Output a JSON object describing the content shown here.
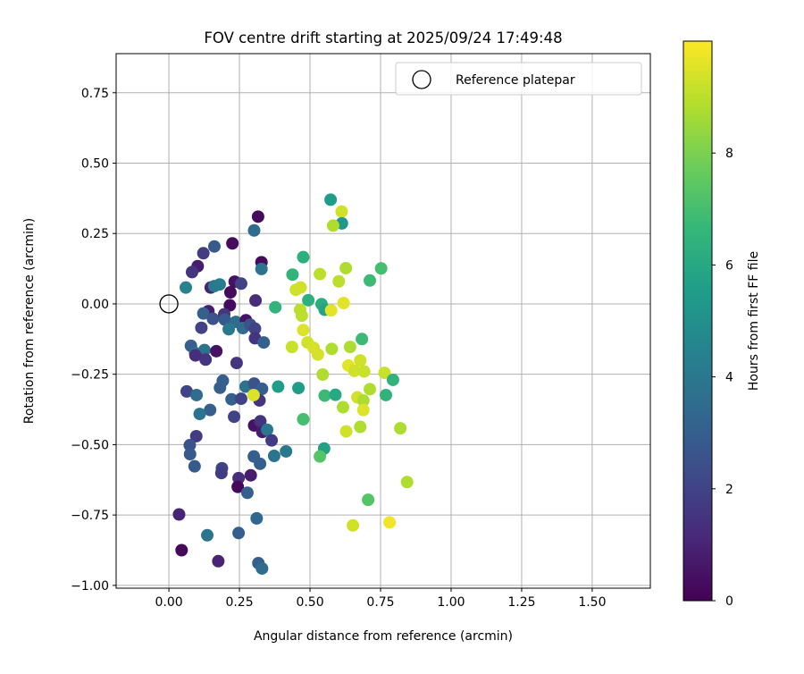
{
  "chart_data": {
    "type": "scatter",
    "title": "FOV centre drift starting at 2025/09/24 17:49:48",
    "xlabel": "Angular distance from reference (arcmin)",
    "ylabel": "Rotation from reference (arcmin)",
    "xlim": [
      -0.187,
      1.706
    ],
    "ylim": [
      -1.01,
      0.889
    ],
    "grid": true,
    "x_ticks": [
      0,
      0.25,
      0.5,
      0.75,
      1.0,
      1.25,
      1.5
    ],
    "x_tick_labels": [
      "0.00",
      "0.25",
      "0.50",
      "0.75",
      "1.00",
      "1.25",
      "1.50"
    ],
    "y_ticks": [
      -1.0,
      -0.75,
      -0.5,
      -0.25,
      0,
      0.25,
      0.5,
      0.75
    ],
    "y_tick_labels": [
      "−1.00",
      "−0.75",
      "−0.50",
      "−0.25",
      "0.00",
      "0.25",
      "0.50",
      "0.75"
    ],
    "legend": {
      "placement": "top-right",
      "entries": [
        "Reference platepar"
      ]
    },
    "reference_point": [
      0,
      0
    ],
    "colorbar": {
      "label": "Hours from first FF file",
      "colormap": "viridis",
      "range": [
        0,
        10
      ],
      "ticks": [
        0,
        2,
        4,
        6,
        8
      ],
      "tick_labels": [
        "0",
        "2",
        "4",
        "6",
        "8"
      ]
    },
    "points": [
      [
        0.316,
        0.31,
        0.3
      ],
      [
        0.302,
        0.261,
        3.5
      ],
      [
        0.225,
        0.215,
        0.3
      ],
      [
        0.161,
        0.204,
        2.8
      ],
      [
        0.122,
        0.18,
        1.8
      ],
      [
        0.102,
        0.134,
        0.8
      ],
      [
        0.082,
        0.113,
        1.5
      ],
      [
        0.328,
        0.148,
        0.3
      ],
      [
        0.328,
        0.124,
        3.8
      ],
      [
        0.06,
        0.058,
        4.5
      ],
      [
        0.148,
        0.058,
        1.0
      ],
      [
        0.161,
        0.063,
        4.0
      ],
      [
        0.18,
        0.069,
        4.2
      ],
      [
        0.233,
        0.079,
        0.5
      ],
      [
        0.218,
        0.041,
        0.3
      ],
      [
        0.256,
        0.072,
        2.0
      ],
      [
        0.216,
        -0.005,
        0.3
      ],
      [
        0.307,
        0.012,
        1.3
      ],
      [
        0.14,
        -0.026,
        0.8
      ],
      [
        0.122,
        -0.034,
        3.0
      ],
      [
        0.156,
        -0.053,
        2.5
      ],
      [
        0.196,
        -0.037,
        1.5
      ],
      [
        0.198,
        -0.056,
        2.8
      ],
      [
        0.237,
        -0.064,
        3.5
      ],
      [
        0.212,
        -0.09,
        4.0
      ],
      [
        0.115,
        -0.085,
        2.0
      ],
      [
        0.273,
        -0.058,
        0.5
      ],
      [
        0.262,
        -0.086,
        3.5
      ],
      [
        0.288,
        -0.074,
        2.5
      ],
      [
        0.305,
        -0.088,
        2.0
      ],
      [
        0.305,
        -0.122,
        1.5
      ],
      [
        0.336,
        -0.137,
        3.0
      ],
      [
        0.078,
        -0.149,
        3.0
      ],
      [
        0.093,
        -0.175,
        3.5
      ],
      [
        0.126,
        -0.164,
        3.8
      ],
      [
        0.168,
        -0.168,
        0.5
      ],
      [
        0.094,
        -0.183,
        1.3
      ],
      [
        0.13,
        -0.198,
        1.5
      ],
      [
        0.24,
        -0.21,
        1.5
      ],
      [
        0.191,
        -0.273,
        3.0
      ],
      [
        0.063,
        -0.311,
        2.0
      ],
      [
        0.098,
        -0.324,
        3.5
      ],
      [
        0.181,
        -0.298,
        3.0
      ],
      [
        0.272,
        -0.294,
        3.8
      ],
      [
        0.302,
        -0.283,
        2.5
      ],
      [
        0.33,
        -0.302,
        3.0
      ],
      [
        0.222,
        -0.339,
        3.0
      ],
      [
        0.256,
        -0.337,
        2.0
      ],
      [
        0.321,
        -0.343,
        1.5
      ],
      [
        0.387,
        -0.294,
        5.5
      ],
      [
        0.459,
        -0.299,
        5.5
      ],
      [
        0.476,
        -0.41,
        7.0
      ],
      [
        0.146,
        -0.377,
        3.0
      ],
      [
        0.109,
        -0.391,
        3.8
      ],
      [
        0.231,
        -0.401,
        2.0
      ],
      [
        0.302,
        -0.432,
        0.5
      ],
      [
        0.324,
        -0.417,
        1.5
      ],
      [
        0.331,
        -0.455,
        0.8
      ],
      [
        0.348,
        -0.447,
        4.0
      ],
      [
        0.364,
        -0.485,
        1.8
      ],
      [
        0.097,
        -0.47,
        1.8
      ],
      [
        0.074,
        -0.502,
        2.5
      ],
      [
        0.075,
        -0.534,
        2.8
      ],
      [
        0.091,
        -0.577,
        2.8
      ],
      [
        0.301,
        -0.542,
        3.0
      ],
      [
        0.323,
        -0.568,
        3.0
      ],
      [
        0.373,
        -0.54,
        3.8
      ],
      [
        0.415,
        -0.524,
        4.0
      ],
      [
        0.188,
        -0.584,
        2.0
      ],
      [
        0.186,
        -0.601,
        1.8
      ],
      [
        0.247,
        -0.619,
        1.3
      ],
      [
        0.29,
        -0.609,
        0.8
      ],
      [
        0.244,
        -0.65,
        0.2
      ],
      [
        0.278,
        -0.671,
        3.0
      ],
      [
        0.036,
        -0.748,
        1.0
      ],
      [
        0.311,
        -0.762,
        3.3
      ],
      [
        0.136,
        -0.822,
        3.8
      ],
      [
        0.247,
        -0.814,
        3.0
      ],
      [
        0.045,
        -0.875,
        0.2
      ],
      [
        0.175,
        -0.914,
        1.0
      ],
      [
        0.317,
        -0.921,
        3.0
      ],
      [
        0.33,
        -0.94,
        3.5
      ],
      [
        0.573,
        0.37,
        5.5
      ],
      [
        0.612,
        0.328,
        9.3
      ],
      [
        0.613,
        0.286,
        5.3
      ],
      [
        0.582,
        0.278,
        8.8
      ],
      [
        0.476,
        0.166,
        6.3
      ],
      [
        0.438,
        0.104,
        6.5
      ],
      [
        0.535,
        0.106,
        9.0
      ],
      [
        0.627,
        0.127,
        8.8
      ],
      [
        0.602,
        0.08,
        9.0
      ],
      [
        0.752,
        0.126,
        7.0
      ],
      [
        0.712,
        0.083,
        6.8
      ],
      [
        0.467,
        0.058,
        9.3
      ],
      [
        0.45,
        0.05,
        9.3
      ],
      [
        0.494,
        0.013,
        6.3
      ],
      [
        0.377,
        -0.012,
        6.5
      ],
      [
        0.541,
        -0.001,
        6.2
      ],
      [
        0.552,
        -0.021,
        5.8
      ],
      [
        0.575,
        -0.023,
        9.6
      ],
      [
        0.619,
        0.003,
        9.6
      ],
      [
        0.465,
        -0.021,
        9.0
      ],
      [
        0.471,
        -0.042,
        9.0
      ],
      [
        0.476,
        -0.093,
        9.5
      ],
      [
        0.491,
        -0.137,
        9.3
      ],
      [
        0.513,
        -0.156,
        9.4
      ],
      [
        0.528,
        -0.18,
        9.4
      ],
      [
        0.436,
        -0.153,
        9.2
      ],
      [
        0.577,
        -0.16,
        8.8
      ],
      [
        0.642,
        -0.153,
        8.8
      ],
      [
        0.684,
        -0.125,
        6.8
      ],
      [
        0.678,
        -0.201,
        9.3
      ],
      [
        0.636,
        -0.219,
        9.6
      ],
      [
        0.657,
        -0.238,
        9.3
      ],
      [
        0.692,
        -0.24,
        9.2
      ],
      [
        0.764,
        -0.245,
        9.2
      ],
      [
        0.794,
        -0.27,
        6.5
      ],
      [
        0.545,
        -0.251,
        8.8
      ],
      [
        0.552,
        -0.326,
        6.8
      ],
      [
        0.59,
        -0.323,
        6.0
      ],
      [
        0.668,
        -0.332,
        9.3
      ],
      [
        0.689,
        -0.343,
        8.8
      ],
      [
        0.712,
        -0.303,
        8.8
      ],
      [
        0.617,
        -0.367,
        8.8
      ],
      [
        0.689,
        -0.377,
        9.5
      ],
      [
        0.769,
        -0.324,
        6.5
      ],
      [
        0.628,
        -0.453,
        9.3
      ],
      [
        0.678,
        -0.437,
        8.8
      ],
      [
        0.82,
        -0.442,
        8.8
      ],
      [
        0.55,
        -0.514,
        5.7
      ],
      [
        0.535,
        -0.542,
        7.3
      ],
      [
        0.844,
        -0.633,
        8.8
      ],
      [
        0.706,
        -0.696,
        7.3
      ],
      [
        0.652,
        -0.787,
        9.3
      ],
      [
        0.782,
        -0.776,
        9.8
      ],
      [
        0.3,
        -0.324,
        9.5
      ]
    ]
  }
}
